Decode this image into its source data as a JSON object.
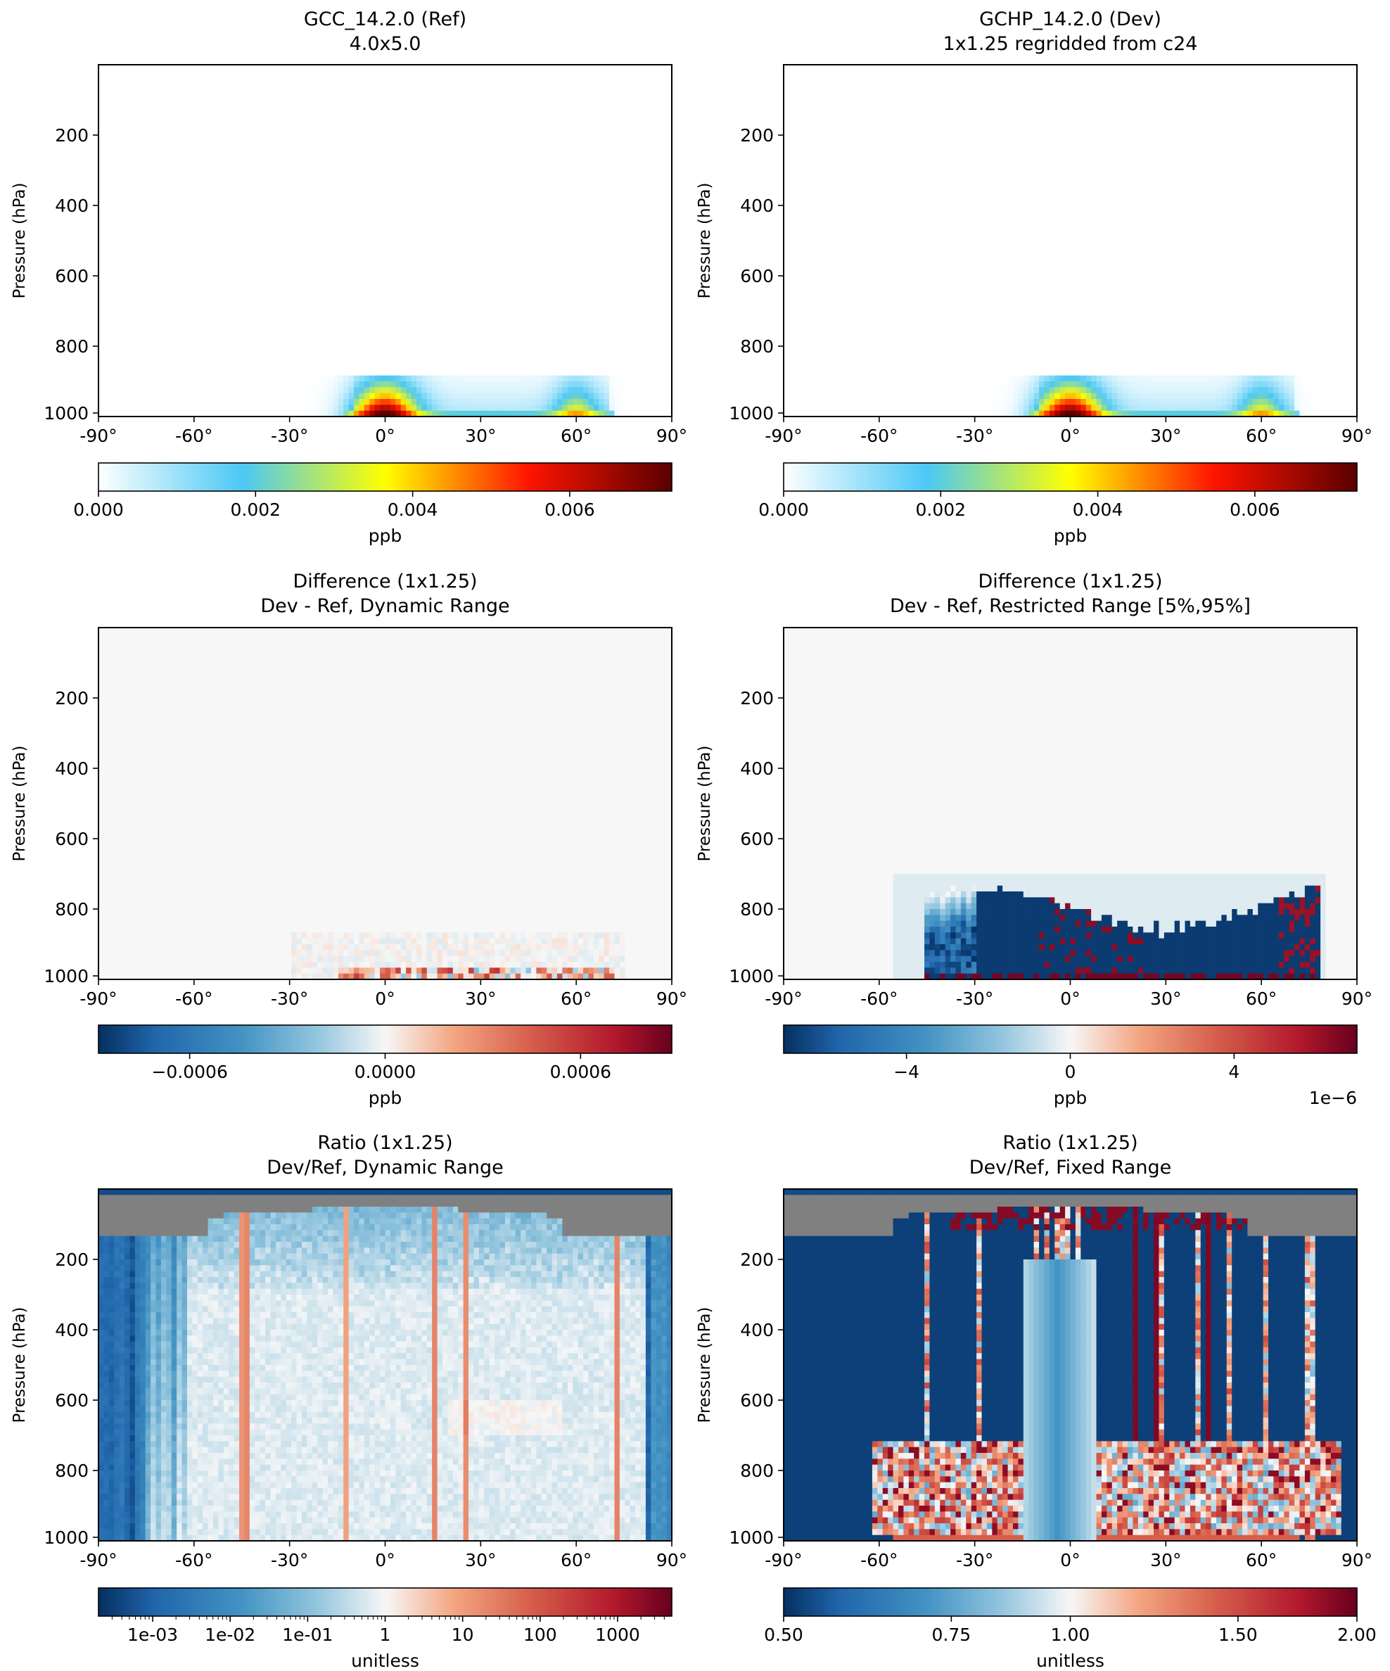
{
  "chart_data": [
    {
      "type": "heatmap",
      "title": "GCC_14.2.0 (Ref)",
      "subtitle": "4.0x5.0",
      "ylabel": "Pressure (hPa)",
      "xlabel": "",
      "x_ticks": [
        "-90°",
        "-60°",
        "-30°",
        "0°",
        "30°",
        "60°",
        "90°"
      ],
      "y_ticks": [
        "200",
        "400",
        "600",
        "800",
        "1000"
      ],
      "xlim": [
        -90,
        90
      ],
      "ylim": [
        1000,
        0
      ],
      "field": "ppb",
      "colorbar": {
        "label": "ppb",
        "ticks": [
          "0.000",
          "0.002",
          "0.004",
          "0.006"
        ],
        "range": [
          0,
          0.0073
        ],
        "colormap": "white-blue-green-yellow-red"
      }
    },
    {
      "type": "heatmap",
      "title": "GCHP_14.2.0 (Dev)",
      "subtitle": "1x1.25 regridded from c24",
      "ylabel": "Pressure (hPa)",
      "xlabel": "",
      "x_ticks": [
        "-90°",
        "-60°",
        "-30°",
        "0°",
        "30°",
        "60°",
        "90°"
      ],
      "y_ticks": [
        "200",
        "400",
        "600",
        "800",
        "1000"
      ],
      "xlim": [
        -90,
        90
      ],
      "ylim": [
        1000,
        0
      ],
      "field": "ppb",
      "colorbar": {
        "label": "ppb",
        "ticks": [
          "0.000",
          "0.002",
          "0.004",
          "0.006"
        ],
        "range": [
          0,
          0.0073
        ],
        "colormap": "white-blue-green-yellow-red"
      }
    },
    {
      "type": "heatmap",
      "title": "Difference (1x1.25)",
      "subtitle": "Dev - Ref, Dynamic Range",
      "ylabel": "Pressure (hPa)",
      "xlabel": "",
      "x_ticks": [
        "-90°",
        "-60°",
        "-30°",
        "0°",
        "30°",
        "60°",
        "90°"
      ],
      "y_ticks": [
        "200",
        "400",
        "600",
        "800",
        "1000"
      ],
      "xlim": [
        -90,
        90
      ],
      "ylim": [
        1000,
        0
      ],
      "field": "diff_dynamic",
      "colorbar": {
        "label": "ppb",
        "ticks": [
          "−0.0006",
          "0.0000",
          "0.0006"
        ],
        "range": [
          -0.00088,
          0.00088
        ],
        "colormap": "RdBu_r"
      }
    },
    {
      "type": "heatmap",
      "title": "Difference (1x1.25)",
      "subtitle": "Dev - Ref, Restricted Range [5%,95%]",
      "ylabel": "Pressure (hPa)",
      "xlabel": "",
      "x_ticks": [
        "-90°",
        "-60°",
        "-30°",
        "0°",
        "30°",
        "60°",
        "90°"
      ],
      "y_ticks": [
        "200",
        "400",
        "600",
        "800",
        "1000"
      ],
      "xlim": [
        -90,
        90
      ],
      "ylim": [
        1000,
        0
      ],
      "field": "diff_restricted",
      "colorbar": {
        "label": "ppb",
        "ticks": [
          "−4",
          "0",
          "4"
        ],
        "range": [
          -7,
          7
        ],
        "offset_text": "1e−6",
        "colormap": "RdBu_r"
      }
    },
    {
      "type": "heatmap",
      "title": "Ratio (1x1.25)",
      "subtitle": "Dev/Ref, Dynamic Range",
      "ylabel": "Pressure (hPa)",
      "xlabel": "",
      "x_ticks": [
        "-90°",
        "-60°",
        "-30°",
        "0°",
        "30°",
        "60°",
        "90°"
      ],
      "y_ticks": [
        "200",
        "400",
        "600",
        "800",
        "1000"
      ],
      "xlim": [
        -90,
        90
      ],
      "ylim": [
        1000,
        0
      ],
      "field": "ratio_dynamic",
      "colorbar": {
        "label": "unitless",
        "ticks": [
          "1e-03",
          "1e-02",
          "1e-01",
          "1",
          "10",
          "100",
          "1000"
        ],
        "scale": "log",
        "range": [
          0.0002,
          5000
        ],
        "colormap": "RdBu_r"
      }
    },
    {
      "type": "heatmap",
      "title": "Ratio (1x1.25)",
      "subtitle": "Dev/Ref, Fixed Range",
      "ylabel": "Pressure (hPa)",
      "xlabel": "",
      "x_ticks": [
        "-90°",
        "-60°",
        "-30°",
        "0°",
        "30°",
        "60°",
        "90°"
      ],
      "y_ticks": [
        "200",
        "400",
        "600",
        "800",
        "1000"
      ],
      "xlim": [
        -90,
        90
      ],
      "ylim": [
        1000,
        0
      ],
      "field": "ratio_fixed",
      "colorbar": {
        "label": "unitless",
        "ticks": [
          "0.50",
          "0.75",
          "1.00",
          "1.50",
          "2.00"
        ],
        "scale": "log",
        "range": [
          0.5,
          2.0
        ],
        "colormap": "RdBu_r"
      }
    }
  ]
}
